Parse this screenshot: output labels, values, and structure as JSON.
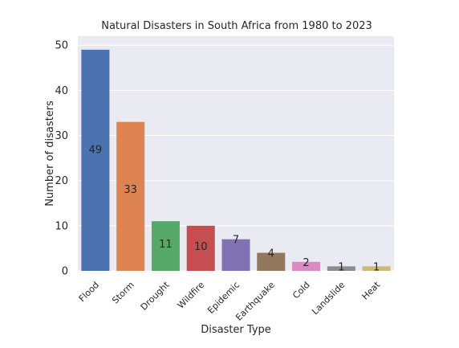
{
  "chart_data": {
    "type": "bar",
    "title": "Natural Disasters in South Africa from 1980 to 2023",
    "xlabel": "Disaster Type",
    "ylabel": "Number of disasters",
    "categories": [
      "Flood",
      "Storm",
      "Drought",
      "Wildfire",
      "Epidemic",
      "Earthquake",
      "Cold",
      "Landslide",
      "Heat"
    ],
    "values": [
      49,
      33,
      11,
      10,
      7,
      4,
      2,
      1,
      1
    ],
    "data_labels": [
      "49",
      "33",
      "11",
      "10",
      "7",
      "4",
      "2",
      "1",
      "1"
    ],
    "colors": [
      "#4c72b0",
      "#dd8452",
      "#55a868",
      "#c44e52",
      "#8172b3",
      "#937860",
      "#da8bc3",
      "#8c8c8c",
      "#ccb974"
    ],
    "ylim": [
      0,
      52
    ],
    "yticks": [
      0,
      10,
      20,
      30,
      40,
      50
    ],
    "grid": true,
    "background": "#eaeaf2"
  }
}
